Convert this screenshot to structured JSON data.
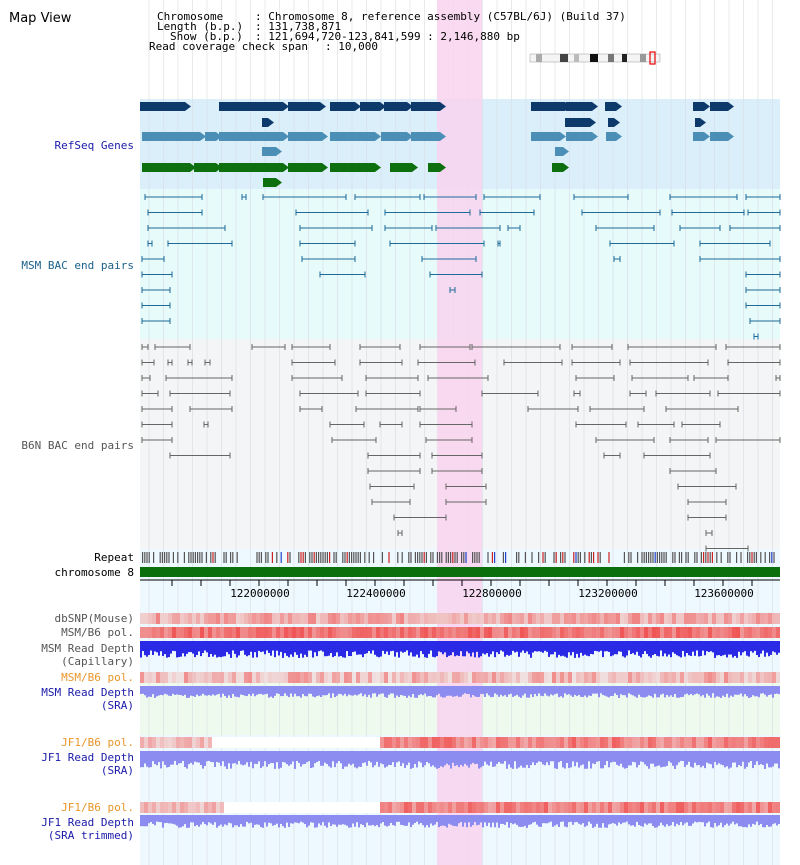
{
  "view_title": "Map View",
  "info": {
    "chromosome_key": "Chromosome",
    "chromosome_val": ": Chromosome 8, reference assembly (C57BL/6J) (Build 37)",
    "length_key": "Length (b.p.)",
    "length_val": ": 131,738,871",
    "show_key": "Show (b.p.)",
    "show_val": ": 121,694,720-123,841,599 : 2,146,880 bp",
    "coverage_key": "Read coverage check span",
    "coverage_val": ": 10,000"
  },
  "tracks": {
    "refseq": "RefSeq Genes",
    "msm_bac": "MSM BAC end pairs",
    "b6n_bac": "B6N BAC end pairs",
    "repeat": "Repeat",
    "chromosome": "chromosome 8",
    "dbsnp": "dbSNP(Mouse)",
    "msm_b6_pol": "MSM/B6 pol.",
    "msm_depth_cap_1": "MSM Read Depth",
    "msm_depth_cap_2": "(Capillary)",
    "msm_b6_pol_2": "MSM/B6 pol.",
    "msm_depth_sra_1": "MSM Read Depth",
    "msm_depth_sra_2": "(SRA)",
    "jf1_pol_1": "JF1/B6 pol.",
    "jf1_depth_sra_1": "JF1 Read Depth",
    "jf1_depth_sra_2": "(SRA)",
    "jf1_pol_2": "JF1/B6 pol.",
    "jf1_depth_trim_1": "JF1 Read Depth",
    "jf1_depth_trim_2": "(SRA trimmed)"
  },
  "axis_ticks": [
    "122000000",
    "122400000",
    "122800000",
    "123200000",
    "123600000"
  ],
  "colors": {
    "refseq_bg": "#dbeffb",
    "msm_bg": "#e7fbfb",
    "b6n_bg": "#f2f4f6",
    "highlight": "#f8d8f0",
    "gene_dark": "#0d3a6b",
    "gene_mid": "#4b8fb7",
    "gene_green": "#0d6f0d",
    "msm_pair": "#1e6a99",
    "b6n_pair": "#666666",
    "chrom_green": "#0b6f0b",
    "depth_blue": "#2a2ae6",
    "depth_light": "#8c8cf0",
    "snp_red": "#e84a4a",
    "label_blue": "#1a1aa8",
    "label_teal": "#1a5f8a",
    "label_orange": "#e8962a",
    "label_gray": "#555555"
  }
}
